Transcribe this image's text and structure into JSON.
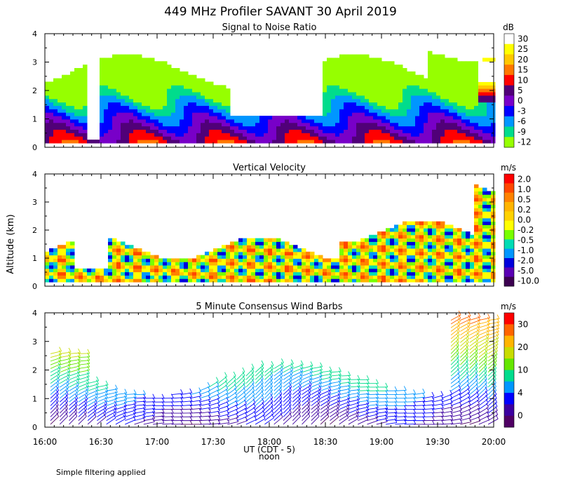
{
  "title": "449 MHz Profiler SAVANT 30 April 2019",
  "y_axis_label": "Altitude (km)",
  "x_axis_label": "UT (CDT - 5)",
  "x_axis_sublabel": "noon",
  "footnote": "Simple filtering applied",
  "chart_data": [
    {
      "type": "heatmap",
      "title": "Signal to Noise Ratio",
      "unit": "dB",
      "ylim": [
        0,
        4
      ],
      "yticks": [
        "0",
        "1",
        "2",
        "3",
        "4"
      ],
      "xlim_hours": [
        16.0,
        20.0
      ],
      "colorbar_ticks": [
        "30",
        "25",
        "20",
        "15",
        "10",
        "5",
        "0",
        "-3",
        "-6",
        "-9",
        "-12"
      ],
      "colorbar_colors": [
        "#ffffff",
        "#ffff00",
        "#ffc800",
        "#ff7800",
        "#ff0000",
        "#500078",
        "#7800c8",
        "#0000ff",
        "#0096ff",
        "#00dc8c",
        "#96ff00"
      ]
    },
    {
      "type": "heatmap",
      "title": "Vertical Velocity",
      "unit": "m/s",
      "ylim": [
        0,
        4
      ],
      "yticks": [
        "0",
        "1",
        "2",
        "3",
        "4"
      ],
      "xlim_hours": [
        16.0,
        20.0
      ],
      "colorbar_ticks": [
        "2.0",
        "1.0",
        "0.5",
        "0.2",
        "0.0",
        "-0.2",
        "-0.5",
        "-1.0",
        "-2.0",
        "-5.0",
        "-10.0"
      ],
      "colorbar_colors": [
        "#ff0000",
        "#ff4600",
        "#ff8200",
        "#ffb400",
        "#ffd200",
        "#ffff00",
        "#78ff00",
        "#00dcb4",
        "#0096ff",
        "#0000dc",
        "#5a00b4",
        "#3c0050"
      ]
    },
    {
      "type": "scatter",
      "title": "5 Minute Consensus Wind Barbs",
      "unit": "m/s",
      "ylim": [
        0,
        4
      ],
      "yticks": [
        "0",
        "1",
        "2",
        "3",
        "4"
      ],
      "xlim_hours": [
        16.0,
        20.0
      ],
      "colorbar_ticks": [
        "30",
        "20",
        "10",
        "4",
        "0"
      ],
      "colorbar_colors": [
        "#ff0000",
        "#ff6400",
        "#ffb400",
        "#c8dc00",
        "#64e600",
        "#00dc8c",
        "#0096ff",
        "#0000ff",
        "#3c00a0",
        "#500064"
      ]
    }
  ],
  "x_ticks": [
    {
      "h": 16.0,
      "label": "16:00"
    },
    {
      "h": 16.5,
      "label": "16:30"
    },
    {
      "h": 17.0,
      "label": "17:00"
    },
    {
      "h": 17.5,
      "label": "17:30"
    },
    {
      "h": 18.0,
      "label": "18:00"
    },
    {
      "h": 18.5,
      "label": "18:30"
    },
    {
      "h": 19.0,
      "label": "19:00"
    },
    {
      "h": 19.5,
      "label": "19:30"
    },
    {
      "h": 20.0,
      "label": "20:00"
    }
  ]
}
